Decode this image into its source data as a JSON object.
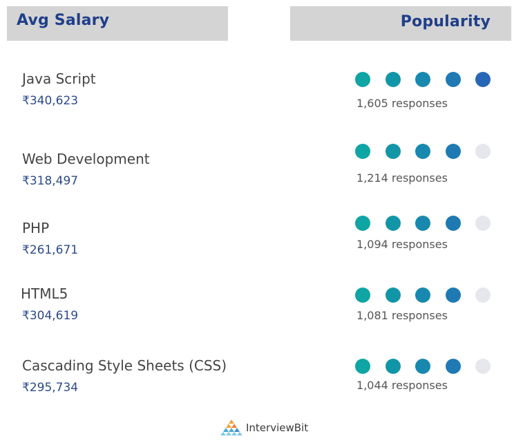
{
  "headers": {
    "salary": "Avg Salary",
    "popularity": "Popularity"
  },
  "rows": [
    {
      "name": "Java Script",
      "salary": "₹340,623",
      "responses": "1,605 responses",
      "rating": 5
    },
    {
      "name": "Web Development",
      "salary": "₹318,497",
      "responses": "1,214 responses",
      "rating": 4
    },
    {
      "name": "PHP",
      "salary": "₹261,671",
      "responses": "1,094 responses",
      "rating": 4
    },
    {
      "name": "HTML5",
      "salary": "₹304,619",
      "responses": "1,081 responses",
      "rating": 4
    },
    {
      "name": "Cascading Style Sheets (CSS)",
      "salary": "₹295,734",
      "responses": "1,044 responses",
      "rating": 4
    }
  ],
  "rating_max": 5,
  "colors": {
    "header_bg": "#d4d4d4",
    "header_text": "#1f3f8a",
    "salary_text": "#2b4a8a",
    "dot_empty": "#e6e7ec",
    "dot_fills": [
      "#0ea5a4",
      "#1196a8",
      "#1888ae",
      "#1f79b3",
      "#2866b8"
    ]
  },
  "logo": {
    "text": "InterviewBit"
  }
}
